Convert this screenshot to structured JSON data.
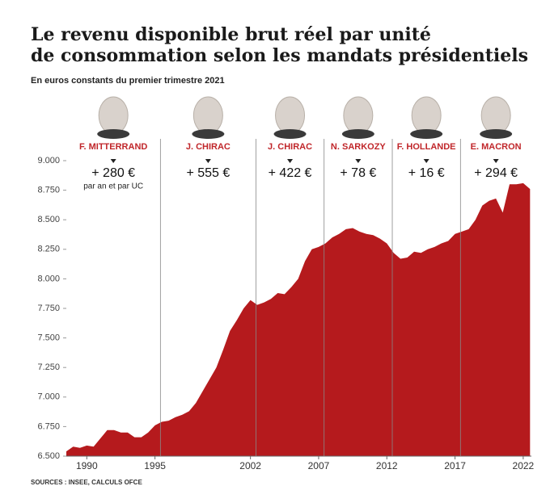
{
  "chart_data": {
    "type": "area",
    "title_lines": [
      "Le revenu disponible brut réel par unité",
      "de consommation selon les mandats présidentiels"
    ],
    "subtitle": "En euros constants du premier trimestre 2021",
    "source": "SOURCES : INSEE, CALCULS OFCE",
    "color": "#b51a1d",
    "x": [
      1988.5,
      1989,
      1989.5,
      1990,
      1990.5,
      1991,
      1991.5,
      1992,
      1992.5,
      1993,
      1993.5,
      1994,
      1994.5,
      1995,
      1995.5,
      1996,
      1996.5,
      1997,
      1997.5,
      1998,
      1998.5,
      1999,
      1999.5,
      2000,
      2000.5,
      2001,
      2001.5,
      2002,
      2002.5,
      2003,
      2003.5,
      2004,
      2004.5,
      2005,
      2005.5,
      2006,
      2006.5,
      2007,
      2007.5,
      2008,
      2008.5,
      2009,
      2009.5,
      2010,
      2010.5,
      2011,
      2011.5,
      2012,
      2012.5,
      2013,
      2013.5,
      2014,
      2014.5,
      2015,
      2015.5,
      2016,
      2016.5,
      2017,
      2017.5,
      2018,
      2018.5,
      2019,
      2019.5,
      2020,
      2020.5,
      2021,
      2021.5,
      2022,
      2022.5
    ],
    "values": [
      6540,
      6580,
      6570,
      6590,
      6580,
      6650,
      6720,
      6720,
      6700,
      6700,
      6660,
      6660,
      6700,
      6760,
      6790,
      6800,
      6830,
      6850,
      6880,
      6950,
      7050,
      7150,
      7250,
      7400,
      7560,
      7650,
      7750,
      7820,
      7780,
      7800,
      7830,
      7880,
      7870,
      7930,
      8000,
      8150,
      8250,
      8270,
      8300,
      8350,
      8380,
      8420,
      8430,
      8400,
      8380,
      8370,
      8340,
      8300,
      8220,
      8170,
      8180,
      8230,
      8220,
      8250,
      8270,
      8300,
      8320,
      8380,
      8400,
      8420,
      8500,
      8620,
      8660,
      8680,
      8560,
      8800,
      8800,
      8810,
      8760
    ],
    "xlim": [
      1988.5,
      2022.6
    ],
    "xticks": [
      1990,
      1995,
      2002,
      2007,
      2012,
      2017,
      2022
    ],
    "ylim": [
      6500,
      9000
    ],
    "yticks": [
      {
        "value": 6500,
        "label": "6.500"
      },
      {
        "value": 6750,
        "label": "6.750"
      },
      {
        "value": 7000,
        "label": "7.000"
      },
      {
        "value": 7250,
        "label": "7.250"
      },
      {
        "value": 7500,
        "label": "7.500"
      },
      {
        "value": 7750,
        "label": "7.750"
      },
      {
        "value": 8000,
        "label": "8.000"
      },
      {
        "value": 8250,
        "label": "8.250"
      },
      {
        "value": 8500,
        "label": "8.500"
      },
      {
        "value": 8750,
        "label": "8.750"
      },
      {
        "value": 9000,
        "label": "9.000"
      }
    ],
    "mandate_dividers": [
      1995.4,
      2002.4,
      2007.4,
      2012.4,
      2017.4
    ],
    "mandates": [
      {
        "name": "F. MITTERRAND",
        "change": "+ 280 €",
        "note": "par an et par UC"
      },
      {
        "name": "J. CHIRAC",
        "change": "+ 555 €"
      },
      {
        "name": "J. CHIRAC",
        "change": "+ 422 €"
      },
      {
        "name": "N. SARKOZY",
        "change": "+ 78 €"
      },
      {
        "name": "F. HOLLANDE",
        "change": "+ 16 €"
      },
      {
        "name": "E. MACRON",
        "change": "+ 294 €"
      }
    ],
    "grid": false
  }
}
